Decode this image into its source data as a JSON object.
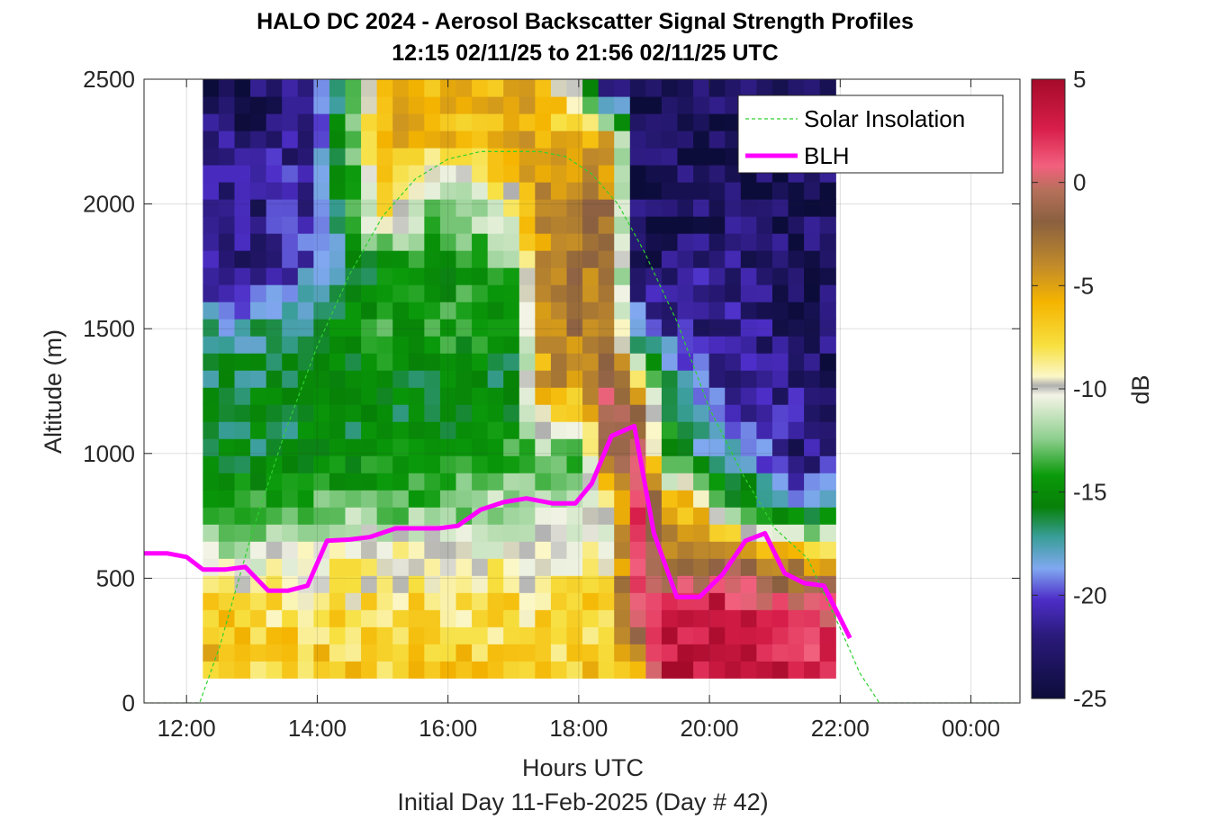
{
  "chart_data": {
    "type": "heatmap",
    "title": "HALO DC 2024 - Aerosol Backscatter Signal Strength Profiles",
    "subtitle": "12:15 02/11/25 to 21:56 02/11/25  UTC",
    "xlabel": "Hours UTC",
    "xsublabel": "Initial Day 11-Feb-2025 (Day # 42)",
    "ylabel": "Altitude (m)",
    "xlim": [
      11.35,
      24.75
    ],
    "ylim": [
      0,
      2500
    ],
    "x_ticks": [
      12,
      14,
      16,
      18,
      20,
      22,
      24
    ],
    "x_tick_labels": [
      "12:00",
      "14:00",
      "16:00",
      "18:00",
      "20:00",
      "22:00",
      "00:00"
    ],
    "y_ticks": [
      0,
      500,
      1000,
      1500,
      2000,
      2500
    ],
    "y_tick_labels": [
      "0",
      "500",
      "1000",
      "1500",
      "2000",
      "2500"
    ],
    "grid": true,
    "legend_location": "top-right",
    "colorbar": {
      "label": "dB",
      "range": [
        -25,
        5
      ],
      "ticks": [
        5,
        0,
        -5,
        -10,
        -15,
        -20,
        -25
      ],
      "tick_labels": [
        "5",
        "0",
        "-5",
        "-10",
        "-15",
        "-20",
        "-25"
      ]
    },
    "heatmap_extent": {
      "x_start": 12.25,
      "x_end": 21.93,
      "altitude_bottom": 100,
      "altitude_top": 2500
    },
    "heatmap_key_times": [
      12.25,
      13.0,
      14.0,
      15.0,
      16.0,
      17.0,
      17.5,
      18.0,
      18.5,
      18.9,
      19.3,
      19.8,
      20.3,
      20.8,
      21.3,
      21.93
    ],
    "heatmap_key_altitudes": [
      150,
      400,
      600,
      800,
      1000,
      1250,
      1500,
      1750,
      2000,
      2250,
      2450
    ],
    "heatmap_db_by_time": [
      [
        -6,
        -7,
        -11,
        -16,
        -17,
        -17,
        -19,
        -23,
        -23,
        -23,
        -24
      ],
      [
        -7,
        -8,
        -12,
        -15,
        -17,
        -17,
        -19,
        -23,
        -23,
        -23,
        -24
      ],
      [
        -7,
        -8,
        -10,
        -14,
        -17,
        -17,
        -17,
        -21,
        -22,
        -22,
        -23
      ],
      [
        -7,
        -8,
        -9,
        -14,
        -16,
        -17,
        -15,
        -16,
        -7,
        -6,
        -5
      ],
      [
        -7,
        -8,
        -10,
        -14,
        -16,
        -17,
        -15,
        -16,
        -14,
        -6,
        -6
      ],
      [
        -7,
        -8,
        -10,
        -12,
        -15,
        -17,
        -16,
        -13,
        -9,
        -6,
        -6
      ],
      [
        -7,
        -8,
        -10,
        -12,
        -13,
        -4,
        -4,
        -4,
        -3,
        -5,
        -6
      ],
      [
        -7,
        -8,
        -10,
        -11,
        -14,
        -6,
        -3,
        -3,
        -3,
        -6,
        -12
      ],
      [
        -6,
        -7,
        -9,
        -11,
        -1,
        2,
        -4,
        -3,
        -3,
        -5,
        -24
      ],
      [
        -5,
        2,
        2,
        2,
        2,
        -6,
        -20,
        -24,
        -24,
        -24,
        -24
      ],
      [
        4,
        4,
        -4,
        -6,
        -15,
        -16,
        -22,
        -24,
        -24,
        -24,
        -24
      ],
      [
        4,
        4,
        -4,
        -6,
        -18,
        -21,
        -23,
        -23,
        -24,
        -24,
        -24
      ],
      [
        4,
        3,
        -3,
        -15,
        -20,
        -22,
        -23,
        -23,
        -24,
        -24,
        -24
      ],
      [
        4,
        2,
        -5,
        -18,
        -21,
        -23,
        -23,
        -23,
        -24,
        -24,
        -24
      ],
      [
        3,
        1,
        -6,
        -20,
        -23,
        -23,
        -24,
        -24,
        -24,
        -24,
        -24
      ],
      [
        3,
        1,
        -7,
        -20,
        -23,
        -23,
        -24,
        -24,
        -24,
        -24,
        -24
      ]
    ],
    "series": [
      {
        "name": "Solar Insolation",
        "style": "dashed",
        "color": "#2fd12f",
        "x": [
          11.35,
          12.2,
          12.5,
          13.0,
          13.5,
          14.0,
          14.5,
          15.0,
          15.5,
          16.0,
          16.5,
          17.0,
          17.4,
          17.8,
          18.2,
          18.6,
          19.0,
          19.5,
          20.0,
          20.5,
          21.0,
          21.5,
          22.0,
          22.3,
          22.6,
          24.75
        ],
        "y": [
          0,
          0,
          220,
          680,
          1080,
          1430,
          1720,
          1950,
          2100,
          2180,
          2210,
          2210,
          2210,
          2190,
          2120,
          2000,
          1810,
          1530,
          1180,
          920,
          700,
          580,
          300,
          120,
          0,
          0
        ]
      },
      {
        "name": "BLH",
        "style": "solid",
        "color": "#ff00ff",
        "x": [
          11.35,
          11.7,
          12.0,
          12.25,
          12.6,
          12.9,
          13.25,
          13.55,
          13.85,
          14.15,
          14.5,
          14.8,
          15.2,
          15.55,
          15.85,
          16.15,
          16.5,
          16.85,
          17.2,
          17.6,
          17.95,
          18.2,
          18.5,
          18.85,
          19.15,
          19.5,
          19.85,
          20.2,
          20.55,
          20.85,
          21.15,
          21.45,
          21.75,
          22.15
        ],
        "y": [
          600,
          600,
          585,
          535,
          535,
          545,
          450,
          450,
          470,
          650,
          655,
          665,
          700,
          700,
          700,
          710,
          775,
          805,
          820,
          800,
          800,
          880,
          1070,
          1110,
          680,
          425,
          425,
          515,
          650,
          680,
          520,
          480,
          470,
          260
        ]
      }
    ]
  }
}
